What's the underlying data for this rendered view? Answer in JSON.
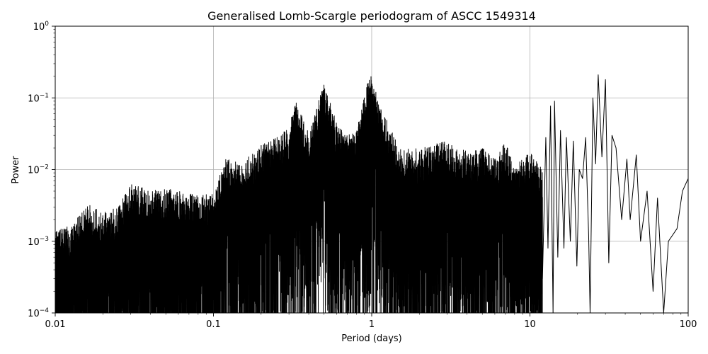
{
  "chart_data": {
    "type": "line",
    "title": "Generalised Lomb-Scargle periodogram of ASCC 1549314",
    "xlabel": "Period (days)",
    "ylabel": "Power",
    "x_scale": "log",
    "y_scale": "log",
    "xlim": [
      0.01,
      100
    ],
    "ylim": [
      0.0001,
      1
    ],
    "grid": true,
    "line_color": "#000000",
    "x_ticks": [
      {
        "value": 0.01,
        "label": "0.01"
      },
      {
        "value": 0.1,
        "label": "0.1"
      },
      {
        "value": 1,
        "label": "1"
      },
      {
        "value": 10,
        "label": "10"
      },
      {
        "value": 100,
        "label": "100"
      }
    ],
    "y_ticks": [
      {
        "value": 0.0001,
        "base": "10",
        "exp": "−4"
      },
      {
        "value": 0.001,
        "base": "10",
        "exp": "−3"
      },
      {
        "value": 0.01,
        "base": "10",
        "exp": "−2"
      },
      {
        "value": 0.1,
        "base": "10",
        "exp": "−1"
      },
      {
        "value": 1,
        "base": "10",
        "exp": "0"
      }
    ],
    "envelope": [
      {
        "period": 0.01,
        "power": 0.0015
      },
      {
        "period": 0.013,
        "power": 0.0017
      },
      {
        "period": 0.016,
        "power": 0.0035
      },
      {
        "period": 0.02,
        "power": 0.0025
      },
      {
        "period": 0.025,
        "power": 0.003
      },
      {
        "period": 0.03,
        "power": 0.0065
      },
      {
        "period": 0.04,
        "power": 0.005
      },
      {
        "period": 0.05,
        "power": 0.0055
      },
      {
        "period": 0.06,
        "power": 0.005
      },
      {
        "period": 0.08,
        "power": 0.0045
      },
      {
        "period": 0.1,
        "power": 0.0045
      },
      {
        "period": 0.12,
        "power": 0.015
      },
      {
        "period": 0.15,
        "power": 0.012
      },
      {
        "period": 0.2,
        "power": 0.022
      },
      {
        "period": 0.25,
        "power": 0.028
      },
      {
        "period": 0.3,
        "power": 0.04
      },
      {
        "period": 0.33,
        "power": 0.09
      },
      {
        "period": 0.4,
        "power": 0.035
      },
      {
        "period": 0.5,
        "power": 0.16
      },
      {
        "period": 0.6,
        "power": 0.045
      },
      {
        "period": 0.7,
        "power": 0.03
      },
      {
        "period": 0.8,
        "power": 0.035
      },
      {
        "period": 0.95,
        "power": 0.18
      },
      {
        "period": 1.0,
        "power": 0.21
      },
      {
        "period": 1.1,
        "power": 0.09
      },
      {
        "period": 1.3,
        "power": 0.04
      },
      {
        "period": 1.5,
        "power": 0.02
      },
      {
        "period": 2.0,
        "power": 0.02
      },
      {
        "period": 3.0,
        "power": 0.025
      },
      {
        "period": 4.0,
        "power": 0.018
      },
      {
        "period": 5.0,
        "power": 0.02
      },
      {
        "period": 6.0,
        "power": 0.014
      },
      {
        "period": 7.0,
        "power": 0.025
      },
      {
        "period": 8.0,
        "power": 0.011
      },
      {
        "period": 10.0,
        "power": 0.018
      },
      {
        "period": 12.0,
        "power": 0.01
      }
    ],
    "tail": [
      {
        "period": 12.0,
        "power": 0.0003
      },
      {
        "period": 12.6,
        "power": 0.028
      },
      {
        "period": 13.0,
        "power": 0.0008
      },
      {
        "period": 13.5,
        "power": 0.077
      },
      {
        "period": 14.0,
        "power": 0.0001
      },
      {
        "period": 14.3,
        "power": 0.09
      },
      {
        "period": 15.0,
        "power": 0.0006
      },
      {
        "period": 15.6,
        "power": 0.035
      },
      {
        "period": 16.4,
        "power": 0.0008
      },
      {
        "period": 17.0,
        "power": 0.028
      },
      {
        "period": 18.0,
        "power": 0.001
      },
      {
        "period": 18.8,
        "power": 0.025
      },
      {
        "period": 19.8,
        "power": 0.00045
      },
      {
        "period": 20.5,
        "power": 0.01
      },
      {
        "period": 21.5,
        "power": 0.0075
      },
      {
        "period": 22.5,
        "power": 0.028
      },
      {
        "period": 23.5,
        "power": 0.0012
      },
      {
        "period": 24.0,
        "power": 0.0001
      },
      {
        "period": 25.0,
        "power": 0.1
      },
      {
        "period": 26.0,
        "power": 0.012
      },
      {
        "period": 27.0,
        "power": 0.21
      },
      {
        "period": 28.5,
        "power": 0.015
      },
      {
        "period": 30.0,
        "power": 0.18
      },
      {
        "period": 31.5,
        "power": 0.0005
      },
      {
        "period": 33.0,
        "power": 0.03
      },
      {
        "period": 35.0,
        "power": 0.02
      },
      {
        "period": 38.0,
        "power": 0.002
      },
      {
        "period": 41.0,
        "power": 0.014
      },
      {
        "period": 43.0,
        "power": 0.002
      },
      {
        "period": 47.0,
        "power": 0.016
      },
      {
        "period": 50.0,
        "power": 0.001
      },
      {
        "period": 55.0,
        "power": 0.005
      },
      {
        "period": 60.0,
        "power": 0.0002
      },
      {
        "period": 64.0,
        "power": 0.004
      },
      {
        "period": 70.0,
        "power": 0.0001
      },
      {
        "period": 75.0,
        "power": 0.001
      },
      {
        "period": 85.0,
        "power": 0.0015
      },
      {
        "period": 92.0,
        "power": 0.005
      },
      {
        "period": 100.0,
        "power": 0.0075
      }
    ]
  }
}
